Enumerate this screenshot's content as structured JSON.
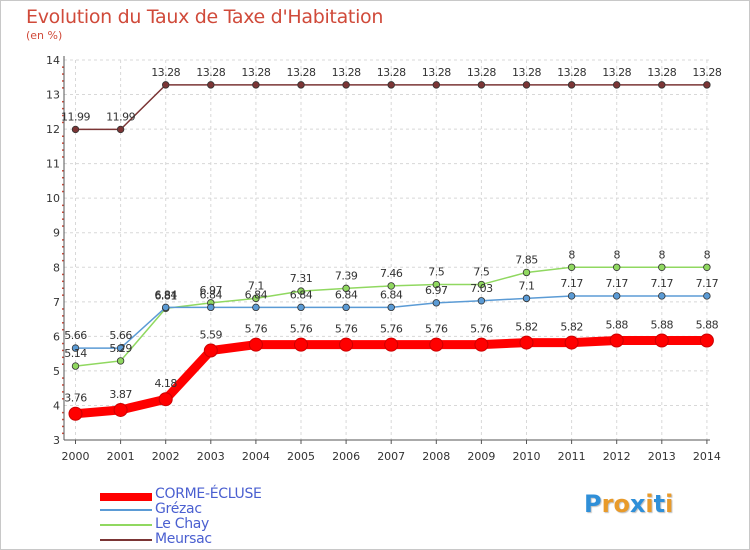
{
  "title": "Evolution du Taux de Taxe d'Habitation",
  "subtitle": "(en %)",
  "chart_data": {
    "type": "line",
    "title": "Evolution du Taux de Taxe d'Habitation",
    "ylabel": "(en %)",
    "xlabel": "",
    "ylim": [
      3,
      14
    ],
    "yticks": [
      "3",
      "4",
      "5",
      "6",
      "7",
      "8",
      "9",
      "10",
      "11",
      "12",
      "13",
      "14"
    ],
    "categories": [
      "2000",
      "2001",
      "2002",
      "2003",
      "2004",
      "2005",
      "2006",
      "2007",
      "2008",
      "2009",
      "2010",
      "2011",
      "2012",
      "2013",
      "2014"
    ],
    "series": [
      {
        "name": "CORME-ÉCLUSE",
        "color": "#ff0000",
        "values": [
          3.76,
          3.87,
          4.18,
          5.59,
          5.76,
          5.76,
          5.76,
          5.76,
          5.76,
          5.76,
          5.82,
          5.82,
          5.88,
          5.88,
          5.88
        ],
        "labels": [
          "3.76",
          "3.87",
          "4.18",
          "5.59",
          "5.76",
          "5.76",
          "5.76",
          "5.76",
          "5.76",
          "5.76",
          "5.82",
          "5.82",
          "5.88",
          "5.88",
          "5.88"
        ]
      },
      {
        "name": "Grézac",
        "color": "#5b9bd5",
        "values": [
          5.66,
          5.66,
          6.84,
          6.84,
          6.84,
          6.84,
          6.84,
          6.84,
          6.97,
          7.03,
          7.1,
          7.17,
          7.17,
          7.17,
          7.17
        ],
        "labels": [
          "5.66",
          "5.66",
          "6.84",
          "6.84",
          "6.84",
          "6.84",
          "6.84",
          "6.84",
          "6.97",
          "7.03",
          "7.1",
          "7.17",
          "7.17",
          "7.17",
          "7.17"
        ]
      },
      {
        "name": "Le Chay",
        "color": "#90d860",
        "values": [
          5.14,
          5.29,
          6.81,
          6.97,
          7.1,
          7.31,
          7.39,
          7.46,
          7.5,
          7.5,
          7.85,
          8,
          8,
          8,
          8
        ],
        "labels": [
          "5.14",
          "5.29",
          "6.81",
          "6.97",
          "7.1",
          "7.31",
          "7.39",
          "7.46",
          "7.5",
          "7.5",
          "7.85",
          "8",
          "8",
          "8",
          "8"
        ]
      },
      {
        "name": "Meursac",
        "color": "#7b3535",
        "values": [
          11.99,
          11.99,
          13.28,
          13.28,
          13.28,
          13.28,
          13.28,
          13.28,
          13.28,
          13.28,
          13.28,
          13.28,
          13.28,
          13.28,
          13.28
        ],
        "labels": [
          "11.99",
          "11.99",
          "13.28",
          "13.28",
          "13.28",
          "13.28",
          "13.28",
          "13.28",
          "13.28",
          "13.28",
          "13.28",
          "13.28",
          "13.28",
          "13.28",
          "13.28"
        ]
      }
    ],
    "legend_position": "bottom-left"
  },
  "logo": {
    "letters": [
      "P",
      "r",
      "o",
      "x",
      "i",
      "t",
      "i"
    ],
    "colors": [
      "#2f8fd8",
      "#e89a2a",
      "#e89a2a",
      "#2f8fd8",
      "#e89a2a",
      "#2f8fd8",
      "#e89a2a"
    ]
  }
}
